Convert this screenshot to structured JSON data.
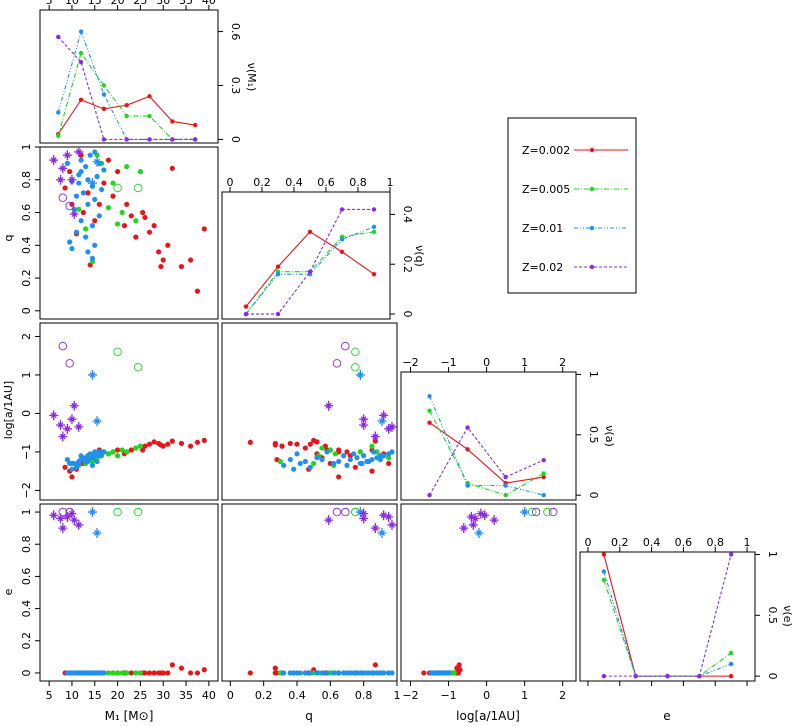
{
  "chart_data": {
    "type": "scatter",
    "title": "",
    "colors": {
      "Z=0.002": "#e8141a",
      "Z=0.005": "#1ed81e",
      "Z=0.01": "#1e90f0",
      "Z=0.02": "#8a2be2"
    },
    "legend": {
      "position": "top-right",
      "entries": [
        {
          "label": "Z=0.002",
          "line": "solid"
        },
        {
          "label": "Z=0.005",
          "line": "dashdot"
        },
        {
          "label": "Z=0.01",
          "line": "dashdotdot"
        },
        {
          "label": "Z=0.02",
          "line": "dashed"
        }
      ]
    },
    "labels": {
      "x_m1": "M₁ [M⊙]",
      "x_q": "q",
      "x_loga": "log[a/1AU]",
      "x_e": "e",
      "y_q": "q",
      "y_loga": "log[a/1AU]",
      "y_e": "e",
      "nu_m1": "ν(M₁)",
      "nu_q": "ν(q)",
      "nu_a": "ν(a)",
      "nu_e": "ν(e)"
    },
    "ranges": {
      "m1": [
        3,
        42
      ],
      "q": [
        -0.05,
        1.0
      ],
      "loga": [
        -2.25,
        2.35
      ],
      "e": [
        -0.05,
        1.05
      ]
    },
    "ticks": {
      "m1": [
        5,
        10,
        15,
        20,
        25,
        30,
        35,
        40
      ],
      "q": [
        0,
        0.2,
        0.4,
        0.6,
        0.8,
        1
      ],
      "q_top": [
        0,
        0.2,
        0.4,
        0.6,
        0.8,
        1
      ],
      "loga": [
        -2,
        -1,
        0,
        1,
        2
      ],
      "e": [
        0,
        0.2,
        0.4,
        0.6,
        0.8,
        1
      ],
      "e_top": [
        0,
        0.2,
        0.4,
        0.6,
        0.8,
        1
      ],
      "nu_m1": [
        0,
        0.3,
        0.6
      ],
      "nu_q": [
        0,
        0.2,
        0.4
      ],
      "nu_a": [
        0,
        0.5,
        1
      ],
      "nu_e": [
        0,
        0.5,
        1
      ]
    },
    "tick_labels": {
      "m1": [
        "5",
        "10",
        "15",
        "20",
        "25",
        "30",
        "35",
        "40"
      ],
      "q": [
        "0",
        "0.2",
        "0.4",
        "0.6",
        "0.8",
        "1"
      ],
      "q_top": [
        "0",
        "0.2",
        "0.4",
        "0.6",
        "0.8",
        "1"
      ],
      "loga": [
        "−2",
        "−1",
        "0",
        "1",
        "2"
      ],
      "e": [
        "0",
        "0.2",
        "0.4",
        "0.6",
        "0.8",
        "1"
      ],
      "e_top": [
        "0",
        "0.2",
        "0.4",
        "0.6",
        "0.8",
        "1"
      ],
      "nu_m1": [
        "0",
        "0.3",
        "0.6"
      ],
      "nu_q": [
        "0",
        "0.2",
        "0.4"
      ],
      "nu_a": [
        "0",
        "0.5",
        "1"
      ],
      "nu_e": [
        "0",
        "0.5",
        "1"
      ]
    },
    "histograms": {
      "m1": {
        "ylim": [
          -0.02,
          0.72
        ],
        "x": [
          7,
          12,
          17,
          22,
          27,
          32,
          37
        ],
        "series": [
          {
            "name": "Z=0.002",
            "values": [
              0.03,
              0.22,
              0.17,
              0.19,
              0.24,
              0.1,
              0.08
            ]
          },
          {
            "name": "Z=0.005",
            "values": [
              0.02,
              0.48,
              0.3,
              0.13,
              0.13,
              0,
              0
            ]
          },
          {
            "name": "Z=0.01",
            "values": [
              0.15,
              0.6,
              0.25,
              0,
              0,
              0,
              0
            ]
          },
          {
            "name": "Z=0.02",
            "values": [
              0.57,
              0.43,
              0,
              0,
              0,
              0,
              0
            ]
          }
        ]
      },
      "q": {
        "ylim": [
          -0.02,
          0.49
        ],
        "x": [
          0.1,
          0.3,
          0.5,
          0.7,
          0.9
        ],
        "series": [
          {
            "name": "Z=0.002",
            "values": [
              0.03,
              0.19,
              0.33,
              0.25,
              0.16
            ]
          },
          {
            "name": "Z=0.005",
            "values": [
              0,
              0.17,
              0.17,
              0.31,
              0.33
            ]
          },
          {
            "name": "Z=0.01",
            "values": [
              0,
              0.16,
              0.16,
              0.3,
              0.35
            ]
          },
          {
            "name": "Z=0.02",
            "values": [
              0,
              0,
              0.17,
              0.42,
              0.42
            ]
          }
        ]
      },
      "a": {
        "ylim": [
          -0.04,
          1.02
        ],
        "x": [
          -1.5,
          -0.5,
          0.5,
          1.5
        ],
        "series": [
          {
            "name": "Z=0.002",
            "values": [
              0.6,
              0.38,
              0.1,
              0.15
            ]
          },
          {
            "name": "Z=0.005",
            "values": [
              0.7,
              0.1,
              0,
              0.18
            ]
          },
          {
            "name": "Z=0.01",
            "values": [
              0.82,
              0.08,
              0.08,
              0
            ]
          },
          {
            "name": "Z=0.02",
            "values": [
              0,
              0.56,
              0.15,
              0.29
            ]
          }
        ]
      },
      "e": {
        "ylim": [
          -0.04,
          1.02
        ],
        "x": [
          0.1,
          0.3,
          0.5,
          0.7,
          0.9
        ],
        "series": [
          {
            "name": "Z=0.002",
            "values": [
              1.0,
              0,
              0,
              0,
              0
            ]
          },
          {
            "name": "Z=0.005",
            "values": [
              0.79,
              0,
              0,
              0,
              0.19
            ]
          },
          {
            "name": "Z=0.01",
            "values": [
              0.86,
              0,
              0,
              0,
              0.1
            ]
          },
          {
            "name": "Z=0.02",
            "values": [
              0,
              0,
              0,
              0,
              1.0
            ]
          }
        ]
      }
    },
    "systems": [
      {
        "m1": 37.5,
        "q": 0.12,
        "a": -0.75,
        "e": 0,
        "Z": "Z=0.002",
        "m": "dot"
      },
      {
        "m1": 36,
        "q": 0.31,
        "a": -0.85,
        "e": 0,
        "Z": "Z=0.002",
        "m": "dot"
      },
      {
        "m1": 39,
        "q": 0.5,
        "a": -0.7,
        "e": 0.02,
        "Z": "Z=0.002",
        "m": "dot"
      },
      {
        "m1": 34,
        "q": 0.27,
        "a": -0.78,
        "e": 0.03,
        "Z": "Z=0.002",
        "m": "dot"
      },
      {
        "m1": 32,
        "q": 0.87,
        "a": -0.72,
        "e": 0.05,
        "Z": "Z=0.002",
        "m": "dot"
      },
      {
        "m1": 31,
        "q": 0.4,
        "a": -0.8,
        "e": 0,
        "Z": "Z=0.002",
        "m": "dot"
      },
      {
        "m1": 30,
        "q": 0.31,
        "a": -0.85,
        "e": 0,
        "Z": "Z=0.002",
        "m": "dot"
      },
      {
        "m1": 29.5,
        "q": 0.27,
        "a": -0.82,
        "e": 0,
        "Z": "Z=0.002",
        "m": "dot"
      },
      {
        "m1": 29,
        "q": 0.36,
        "a": -0.78,
        "e": 0,
        "Z": "Z=0.002",
        "m": "dot"
      },
      {
        "m1": 28,
        "q": 0.52,
        "a": -0.74,
        "e": 0,
        "Z": "Z=0.002",
        "m": "dot"
      },
      {
        "m1": 27,
        "q": 0.48,
        "a": -0.8,
        "e": 0,
        "Z": "Z=0.002",
        "m": "dot"
      },
      {
        "m1": 26,
        "q": 0.57,
        "a": -0.85,
        "e": 0,
        "Z": "Z=0.002",
        "m": "dot"
      },
      {
        "m1": 25.5,
        "q": 0.6,
        "a": -0.95,
        "e": 0,
        "Z": "Z=0.002",
        "m": "dot"
      },
      {
        "m1": 24,
        "q": 0.45,
        "a": -0.9,
        "e": 0,
        "Z": "Z=0.002",
        "m": "dot"
      },
      {
        "m1": 23,
        "q": 0.58,
        "a": -0.95,
        "e": 0,
        "Z": "Z=0.002",
        "m": "dot"
      },
      {
        "m1": 22,
        "q": 0.65,
        "a": -1.0,
        "e": 0,
        "Z": "Z=0.002",
        "m": "dot"
      },
      {
        "m1": 21.5,
        "q": 0.52,
        "a": -1.05,
        "e": 0,
        "Z": "Z=0.002",
        "m": "dot"
      },
      {
        "m1": 20,
        "q": 0.85,
        "a": -0.95,
        "e": 0,
        "Z": "Z=0.002",
        "m": "dot"
      },
      {
        "m1": 19,
        "q": 0.7,
        "a": -1.0,
        "e": 0,
        "Z": "Z=0.002",
        "m": "dot"
      },
      {
        "m1": 18,
        "q": 0.92,
        "a": -1.05,
        "e": 0,
        "Z": "Z=0.002",
        "m": "dot"
      },
      {
        "m1": 16,
        "q": 0.65,
        "a": -0.95,
        "e": 0,
        "Z": "Z=0.002",
        "m": "dot"
      },
      {
        "m1": 15,
        "q": 0.55,
        "a": -1.15,
        "e": 0,
        "Z": "Z=0.002",
        "m": "dot"
      },
      {
        "m1": 14,
        "q": 0.28,
        "a": -1.2,
        "e": 0,
        "Z": "Z=0.002",
        "m": "dot"
      },
      {
        "m1": 12.5,
        "q": 0.6,
        "a": -1.3,
        "e": 0,
        "Z": "Z=0.002",
        "m": "dot"
      },
      {
        "m1": 11,
        "q": 0.47,
        "a": -1.45,
        "e": 0,
        "Z": "Z=0.002",
        "m": "dot"
      },
      {
        "m1": 10,
        "q": 0.65,
        "a": -1.65,
        "e": 0,
        "Z": "Z=0.002",
        "m": "dot"
      },
      {
        "m1": 9.5,
        "q": 0.85,
        "a": -1.5,
        "e": 0,
        "Z": "Z=0.002",
        "m": "dot"
      },
      {
        "m1": 8.5,
        "q": 0.75,
        "a": -1.4,
        "e": 0,
        "Z": "Z=0.002",
        "m": "dot"
      },
      {
        "m1": 13.5,
        "q": 0.72,
        "a": -1.1,
        "e": 0,
        "Z": "Z=0.002",
        "m": "dot"
      },
      {
        "m1": 17,
        "q": 0.78,
        "a": -1.0,
        "e": 0,
        "Z": "Z=0.002",
        "m": "dot"
      },
      {
        "m1": 12,
        "q": 0.95,
        "a": -1.3,
        "e": 0,
        "Z": "Z=0.002",
        "m": "dot"
      },
      {
        "m1": 25,
        "q": 0.85,
        "a": -0.85,
        "e": 0,
        "Z": "Z=0.005",
        "m": "dot"
      },
      {
        "m1": 24,
        "q": 0.55,
        "a": -0.9,
        "e": 0,
        "Z": "Z=0.005",
        "m": "dot"
      },
      {
        "m1": 22,
        "q": 0.88,
        "a": -1.0,
        "e": 0,
        "Z": "Z=0.005",
        "m": "dot"
      },
      {
        "m1": 21,
        "q": 0.6,
        "a": -0.95,
        "e": 0,
        "Z": "Z=0.005",
        "m": "dot"
      },
      {
        "m1": 20,
        "q": 0.53,
        "a": -1.1,
        "e": 0,
        "Z": "Z=0.005",
        "m": "dot"
      },
      {
        "m1": 19,
        "q": 0.78,
        "a": -1.0,
        "e": 0,
        "Z": "Z=0.005",
        "m": "dot"
      },
      {
        "m1": 18,
        "q": 0.63,
        "a": -1.05,
        "e": 0,
        "Z": "Z=0.005",
        "m": "dot"
      },
      {
        "m1": 16.5,
        "q": 0.9,
        "a": -1.1,
        "e": 0,
        "Z": "Z=0.005",
        "m": "dot"
      },
      {
        "m1": 15.5,
        "q": 0.95,
        "a": -1.15,
        "e": 0,
        "Z": "Z=0.005",
        "m": "dot"
      },
      {
        "m1": 14.5,
        "q": 0.3,
        "a": -1.25,
        "e": 0,
        "Z": "Z=0.005",
        "m": "dot"
      },
      {
        "m1": 13,
        "q": 0.5,
        "a": -1.3,
        "e": 0,
        "Z": "Z=0.005",
        "m": "dot"
      },
      {
        "m1": 11.5,
        "q": 0.62,
        "a": -1.35,
        "e": 0,
        "Z": "Z=0.005",
        "m": "dot"
      },
      {
        "m1": 20,
        "q": 0.75,
        "a": 1.6,
        "e": 1.0,
        "Z": "Z=0.005",
        "m": "ring"
      },
      {
        "m1": 24.5,
        "q": 0.75,
        "a": 1.2,
        "e": 1.0,
        "Z": "Z=0.005",
        "m": "ring"
      },
      {
        "m1": 15,
        "q": 0.97,
        "a": -1.0,
        "e": 0,
        "Z": "Z=0.01",
        "m": "dot"
      },
      {
        "m1": 14,
        "q": 0.95,
        "a": -1.05,
        "e": 0,
        "Z": "Z=0.01",
        "m": "dot"
      },
      {
        "m1": 16,
        "q": 0.9,
        "a": -1.1,
        "e": 0,
        "Z": "Z=0.01",
        "m": "dot"
      },
      {
        "m1": 13,
        "q": 0.88,
        "a": -1.15,
        "e": 0,
        "Z": "Z=0.01",
        "m": "dot"
      },
      {
        "m1": 12,
        "q": 0.85,
        "a": -1.2,
        "e": 0,
        "Z": "Z=0.01",
        "m": "dot"
      },
      {
        "m1": 15.5,
        "q": 0.82,
        "a": -1.25,
        "e": 0,
        "Z": "Z=0.01",
        "m": "dot"
      },
      {
        "m1": 13.5,
        "q": 0.8,
        "a": -1.1,
        "e": 0,
        "Z": "Z=0.01",
        "m": "dot"
      },
      {
        "m1": 11.5,
        "q": 0.78,
        "a": -1.3,
        "e": 0,
        "Z": "Z=0.01",
        "m": "dot"
      },
      {
        "m1": 14.5,
        "q": 0.76,
        "a": -1.15,
        "e": 0,
        "Z": "Z=0.01",
        "m": "dot"
      },
      {
        "m1": 16.5,
        "q": 0.74,
        "a": -1.05,
        "e": 0,
        "Z": "Z=0.01",
        "m": "dot"
      },
      {
        "m1": 12.5,
        "q": 0.72,
        "a": -1.2,
        "e": 0,
        "Z": "Z=0.01",
        "m": "dot"
      },
      {
        "m1": 11,
        "q": 0.7,
        "a": -1.35,
        "e": 0,
        "Z": "Z=0.01",
        "m": "dot"
      },
      {
        "m1": 15,
        "q": 0.68,
        "a": -1.1,
        "e": 0,
        "Z": "Z=0.01",
        "m": "dot"
      },
      {
        "m1": 13.5,
        "q": 0.65,
        "a": -1.25,
        "e": 0,
        "Z": "Z=0.01",
        "m": "dot"
      },
      {
        "m1": 10.5,
        "q": 0.62,
        "a": -1.3,
        "e": 0,
        "Z": "Z=0.01",
        "m": "dot"
      },
      {
        "m1": 16,
        "q": 0.58,
        "a": -1.0,
        "e": 0,
        "Z": "Z=0.01",
        "m": "dot"
      },
      {
        "m1": 12,
        "q": 0.55,
        "a": -1.2,
        "e": 0,
        "Z": "Z=0.01",
        "m": "dot"
      },
      {
        "m1": 14.5,
        "q": 0.52,
        "a": -1.15,
        "e": 0,
        "Z": "Z=0.01",
        "m": "dot"
      },
      {
        "m1": 11,
        "q": 0.48,
        "a": -1.4,
        "e": 0,
        "Z": "Z=0.01",
        "m": "dot"
      },
      {
        "m1": 13,
        "q": 0.45,
        "a": -1.25,
        "e": 0,
        "Z": "Z=0.01",
        "m": "dot"
      },
      {
        "m1": 9.5,
        "q": 0.42,
        "a": -1.3,
        "e": 0,
        "Z": "Z=0.01",
        "m": "dot"
      },
      {
        "m1": 15,
        "q": 0.4,
        "a": -1.05,
        "e": 0,
        "Z": "Z=0.01",
        "m": "dot"
      },
      {
        "m1": 10,
        "q": 0.38,
        "a": -1.45,
        "e": 0,
        "Z": "Z=0.01",
        "m": "dot"
      },
      {
        "m1": 13.5,
        "q": 0.36,
        "a": -1.2,
        "e": 0,
        "Z": "Z=0.01",
        "m": "dot"
      },
      {
        "m1": 14.5,
        "q": 0.32,
        "a": -1.35,
        "e": 0,
        "Z": "Z=0.01",
        "m": "dot"
      },
      {
        "m1": 12,
        "q": 0.92,
        "a": -1.1,
        "e": 0,
        "Z": "Z=0.01",
        "m": "dot"
      },
      {
        "m1": 9,
        "q": 0.9,
        "a": -1.2,
        "e": 0,
        "Z": "Z=0.01",
        "m": "dot"
      },
      {
        "m1": 17,
        "q": 0.86,
        "a": -1.0,
        "e": 0,
        "Z": "Z=0.01",
        "m": "dot"
      },
      {
        "m1": 11.5,
        "q": 0.83,
        "a": -1.25,
        "e": 0,
        "Z": "Z=0.01",
        "m": "dot"
      },
      {
        "m1": 10,
        "q": 0.79,
        "a": -1.3,
        "e": 0,
        "Z": "Z=0.01",
        "m": "dot"
      },
      {
        "m1": 14.5,
        "q": 0.78,
        "a": 1.0,
        "e": 1.0,
        "Z": "Z=0.01",
        "m": "star"
      },
      {
        "m1": 15.5,
        "q": 0.91,
        "a": -0.2,
        "e": 0.87,
        "Z": "Z=0.01",
        "m": "star"
      },
      {
        "m1": 8,
        "q": 0.69,
        "a": 1.75,
        "e": 1.0,
        "Z": "Z=0.02",
        "m": "ring"
      },
      {
        "m1": 9.5,
        "q": 0.64,
        "a": 1.3,
        "e": 1.0,
        "Z": "Z=0.02",
        "m": "ring"
      },
      {
        "m1": 6,
        "q": 0.92,
        "a": -0.05,
        "e": 0.98,
        "Z": "Z=0.02",
        "m": "star"
      },
      {
        "m1": 8,
        "q": 0.87,
        "a": -0.6,
        "e": 0.9,
        "Z": "Z=0.02",
        "m": "star"
      },
      {
        "m1": 9,
        "q": 0.95,
        "a": -0.4,
        "e": 0.97,
        "Z": "Z=0.02",
        "m": "star"
      },
      {
        "m1": 10,
        "q": 0.8,
        "a": -0.15,
        "e": 0.99,
        "Z": "Z=0.02",
        "m": "star"
      },
      {
        "m1": 10.5,
        "q": 0.59,
        "a": 0.2,
        "e": 0.95,
        "Z": "Z=0.02",
        "m": "star"
      },
      {
        "m1": 11.5,
        "q": 0.97,
        "a": -0.35,
        "e": 0.92,
        "Z": "Z=0.02",
        "m": "star"
      },
      {
        "m1": 7.5,
        "q": 0.8,
        "a": -0.3,
        "e": 0.96,
        "Z": "Z=0.02",
        "m": "star"
      }
    ]
  }
}
